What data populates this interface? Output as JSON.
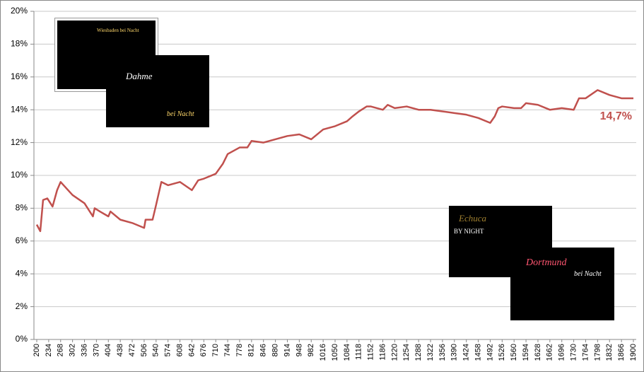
{
  "chart_data": {
    "type": "line",
    "x": [
      200,
      210,
      218,
      230,
      245,
      258,
      268,
      302,
      336,
      360,
      365,
      380,
      404,
      410,
      438,
      472,
      506,
      510,
      530,
      540,
      555,
      574,
      608,
      642,
      660,
      676,
      710,
      730,
      744,
      778,
      800,
      812,
      846,
      880,
      914,
      948,
      982,
      1016,
      1050,
      1084,
      1100,
      1118,
      1140,
      1152,
      1186,
      1200,
      1220,
      1254,
      1288,
      1322,
      1356,
      1390,
      1424,
      1458,
      1492,
      1505,
      1515,
      1526,
      1560,
      1580,
      1594,
      1628,
      1662,
      1696,
      1730,
      1745,
      1764,
      1798,
      1832,
      1866,
      1900
    ],
    "series": [
      {
        "color": "#c0504d",
        "values": [
          7.0,
          6.6,
          8.5,
          8.6,
          8.1,
          9.1,
          9.6,
          8.8,
          8.3,
          7.5,
          8.0,
          7.8,
          7.5,
          7.8,
          7.3,
          7.1,
          6.8,
          7.3,
          7.3,
          8.2,
          9.6,
          9.4,
          9.6,
          9.1,
          9.7,
          9.8,
          10.1,
          10.7,
          11.3,
          11.7,
          11.7,
          12.1,
          12.0,
          12.2,
          12.4,
          12.5,
          12.2,
          12.8,
          13.0,
          13.3,
          13.6,
          13.9,
          14.2,
          14.2,
          14.0,
          14.3,
          14.1,
          14.2,
          14.0,
          14.0,
          13.9,
          13.8,
          13.7,
          13.5,
          13.2,
          13.6,
          14.1,
          14.2,
          14.1,
          14.1,
          14.4,
          14.3,
          14.0,
          14.1,
          14.0,
          14.7,
          14.7,
          15.2,
          14.9,
          14.7,
          14.7
        ]
      }
    ],
    "xlim": [
      200,
      1900
    ],
    "xticks": [
      200,
      234,
      268,
      302,
      336,
      370,
      404,
      438,
      472,
      506,
      540,
      574,
      608,
      642,
      676,
      710,
      744,
      778,
      812,
      846,
      880,
      914,
      948,
      982,
      1016,
      1050,
      1084,
      1118,
      1152,
      1186,
      1220,
      1254,
      1288,
      1322,
      1356,
      1390,
      1424,
      1458,
      1492,
      1526,
      1560,
      1594,
      1628,
      1662,
      1696,
      1730,
      1764,
      1798,
      1832,
      1866,
      1900
    ],
    "ylim": [
      0,
      20
    ],
    "yticks": [
      {
        "value": 0,
        "label": "0%"
      },
      {
        "value": 2,
        "label": "2%"
      },
      {
        "value": 4,
        "label": "4%"
      },
      {
        "value": 6,
        "label": "6%"
      },
      {
        "value": 8,
        "label": "8%"
      },
      {
        "value": 10,
        "label": "10%"
      },
      {
        "value": 12,
        "label": "12%"
      },
      {
        "value": 14,
        "label": "14%"
      },
      {
        "value": 16,
        "label": "16%"
      },
      {
        "value": 18,
        "label": "18%"
      },
      {
        "value": 20,
        "label": "20%"
      }
    ],
    "grid": true,
    "annotations": [
      {
        "x": 1900,
        "value": 14.7,
        "label": "14,7%"
      }
    ]
  },
  "images": [
    {
      "caption": "Wiesbaden bei Nacht"
    },
    {
      "caption": "Dahme",
      "subcaption": "bei Nacht"
    },
    {
      "caption": "Echuca",
      "subcaption": "BY NIGHT"
    },
    {
      "caption": "Dortmund",
      "subcaption": "bei Nacht"
    }
  ]
}
